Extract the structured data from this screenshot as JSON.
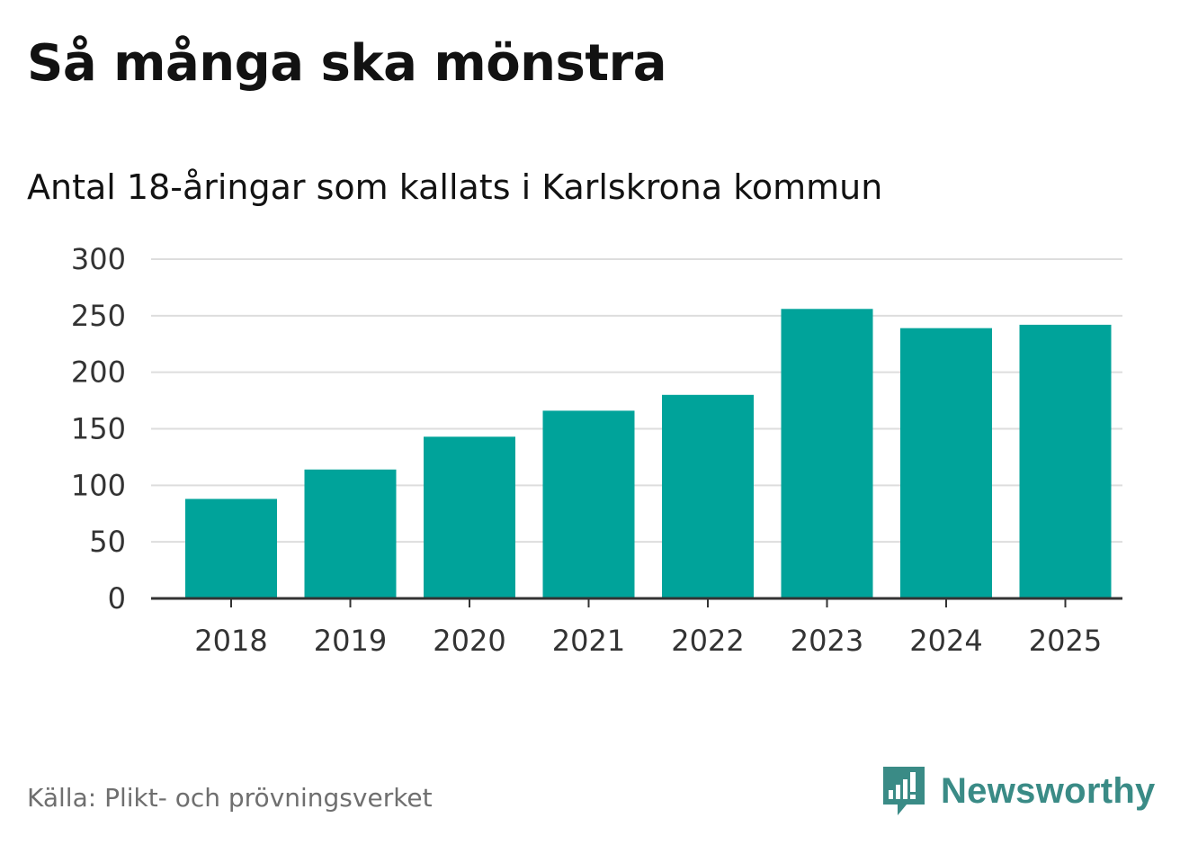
{
  "title": "Så många ska mönstra",
  "subtitle": "Antal 18-åringar som kallats i Karlskrona kommun",
  "source": "Källa: Plikt- och prövningsverket",
  "brand": {
    "name": "Newsworthy",
    "color": "#3a8b86",
    "icon": "newsworthy-logo-icon"
  },
  "colors": {
    "bar": "#00a39a",
    "grid": "#dddddd",
    "axis": "#333333"
  },
  "chart_data": {
    "type": "bar",
    "title": "Så många ska mönstra",
    "subtitle": "Antal 18-åringar som kallats i Karlskrona kommun",
    "categories": [
      "2018",
      "2019",
      "2020",
      "2021",
      "2022",
      "2023",
      "2024",
      "2025"
    ],
    "values": [
      88,
      114,
      143,
      166,
      180,
      256,
      239,
      242
    ],
    "xlabel": "",
    "ylabel": "",
    "ylim": [
      0,
      300
    ],
    "yticks": [
      "0",
      "50",
      "100",
      "150",
      "200",
      "250",
      "300"
    ],
    "grid": true,
    "legend": "none"
  }
}
